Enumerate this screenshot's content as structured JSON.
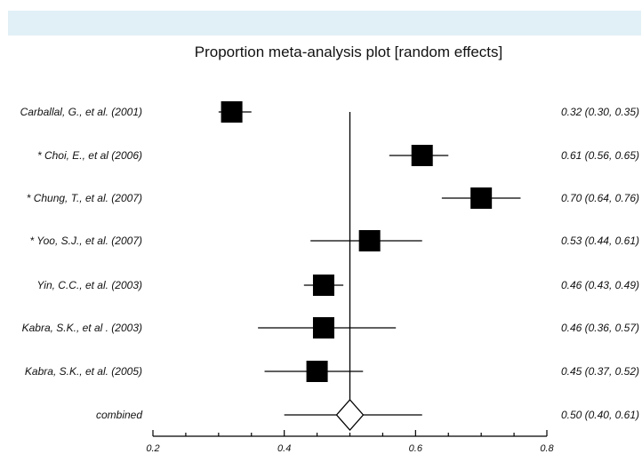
{
  "header": {
    "accent_color": "#e1f0f6"
  },
  "chart_data": {
    "type": "forest",
    "title": "Proportion meta-analysis plot [random effects]",
    "xlim": [
      0.2,
      0.8
    ],
    "x_ticks": [
      0.2,
      0.4,
      0.6,
      0.8
    ],
    "x_tick_labels": [
      "0.2",
      "0.4",
      "0.6",
      "0.8"
    ],
    "reference_line": 0.5,
    "studies": [
      {
        "label": "Carballal, G., et al. (2001)",
        "estimate": 0.32,
        "ci_low": 0.3,
        "ci_high": 0.35,
        "ci_text": "0.32 (0.30, 0.35)"
      },
      {
        "label": "* Choi,  E., et al (2006)",
        "estimate": 0.61,
        "ci_low": 0.56,
        "ci_high": 0.65,
        "ci_text": "0.61 (0.56, 0.65)"
      },
      {
        "label": "* Chung, T., et al. (2007)",
        "estimate": 0.7,
        "ci_low": 0.64,
        "ci_high": 0.76,
        "ci_text": "0.70 (0.64, 0.76)"
      },
      {
        "label": "* Yoo, S.J., et al. (2007)",
        "estimate": 0.53,
        "ci_low": 0.44,
        "ci_high": 0.61,
        "ci_text": "0.53 (0.44, 0.61)"
      },
      {
        "label": "Yin, C.C., et al. (2003)",
        "estimate": 0.46,
        "ci_low": 0.43,
        "ci_high": 0.49,
        "ci_text": "0.46 (0.43, 0.49)"
      },
      {
        "label": "Kabra, S.K., et al . (2003)",
        "estimate": 0.46,
        "ci_low": 0.36,
        "ci_high": 0.57,
        "ci_text": "0.46 (0.36, 0.57)"
      },
      {
        "label": "Kabra, S.K., et al. (2005)",
        "estimate": 0.45,
        "ci_low": 0.37,
        "ci_high": 0.52,
        "ci_text": "0.45 (0.37, 0.52)"
      }
    ],
    "combined": {
      "label": "combined",
      "estimate": 0.5,
      "ci_low": 0.4,
      "ci_high": 0.61,
      "ci_text": "0.50 (0.40, 0.61)"
    }
  }
}
